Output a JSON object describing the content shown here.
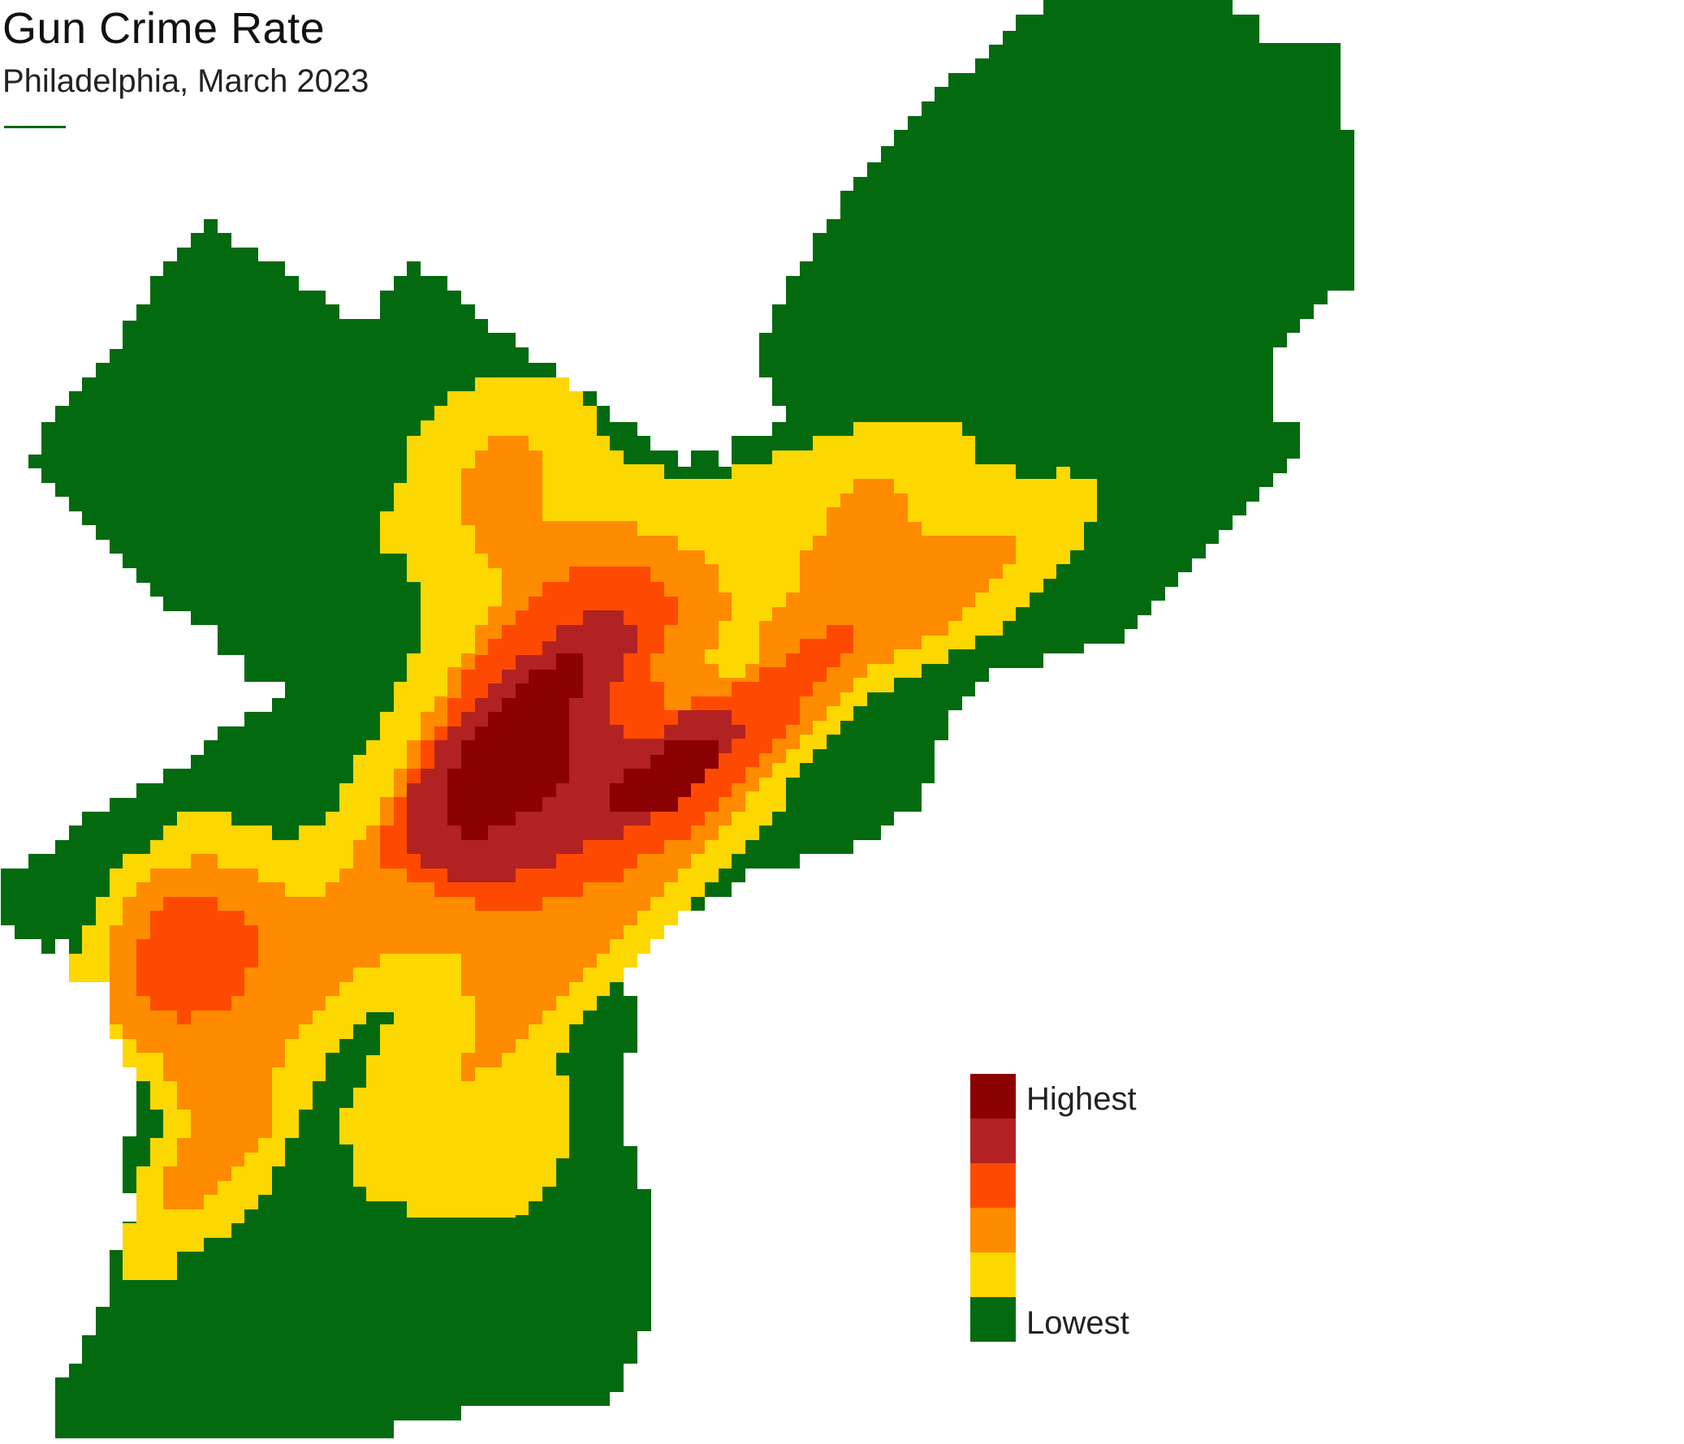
{
  "title": "Gun Crime Rate",
  "subtitle": "Philadelphia, March 2023",
  "colors": {
    "level_1_lowest": "#036a0f",
    "level_2": "#fdd700",
    "level_3": "#fe8b00",
    "level_4": "#fe4a00",
    "level_5": "#b22222",
    "level_6_highest": "#8b0000",
    "rule": "#036a0f"
  },
  "legend": {
    "high_label": "Highest",
    "low_label": "Lowest",
    "levels": [
      "level_6_highest",
      "level_5",
      "level_4",
      "level_3",
      "level_2",
      "level_1_lowest"
    ]
  }
}
